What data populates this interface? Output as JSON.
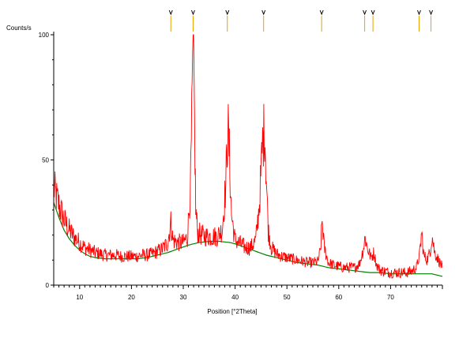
{
  "chart_data": {
    "type": "line",
    "ylabel": "Counts/s",
    "xlabel": "Position [°2Theta]",
    "xlim": [
      5,
      80
    ],
    "ylim": [
      0,
      100
    ],
    "x_ticks": [
      10,
      20,
      30,
      40,
      50,
      60,
      70
    ],
    "y_ticks": [
      0,
      50,
      100
    ],
    "grid": false,
    "series": [
      {
        "color": "#ff0000",
        "x": [
          5,
          6,
          7,
          8,
          9,
          10,
          11,
          12,
          13,
          14,
          15,
          16,
          17,
          18,
          19,
          20,
          21,
          22,
          23,
          24,
          25,
          26,
          27,
          27.6,
          28,
          29,
          30,
          30.8,
          31.4,
          31.7,
          31.9,
          32.1,
          32.4,
          32.8,
          33.5,
          34.5,
          35.5,
          36.5,
          37.5,
          38.2,
          38.6,
          38.9,
          39.3,
          40,
          41,
          42,
          43,
          44,
          44.7,
          45.3,
          45.7,
          46.0,
          46.4,
          47,
          48,
          49,
          50,
          51,
          52,
          53,
          54,
          55,
          56,
          56.5,
          56.8,
          57.2,
          58,
          59,
          60,
          61,
          62,
          63,
          64,
          64.7,
          65.1,
          65.5,
          66.2,
          66.8,
          67.3,
          68,
          69,
          70,
          71,
          72,
          73,
          74,
          75,
          75.6,
          76.0,
          76.4,
          77,
          77.6,
          78.0,
          78.5,
          79,
          80
        ],
        "y": [
          39,
          32,
          26,
          22,
          19,
          17,
          15,
          14,
          13,
          12.5,
          12,
          12,
          12,
          11.5,
          11.5,
          11.5,
          11.5,
          12,
          12,
          12.5,
          13.5,
          14.5,
          17,
          25,
          18,
          17,
          17,
          19,
          40,
          72,
          97,
          75,
          30,
          21,
          20,
          19.5,
          19.5,
          19.5,
          22,
          40,
          64,
          52,
          28,
          18,
          16.5,
          15,
          15,
          18,
          33,
          57,
          63,
          44,
          22,
          15,
          12.5,
          11.5,
          11,
          10.5,
          10,
          9.5,
          9,
          9,
          9.5,
          14,
          26,
          15,
          9,
          8,
          7.5,
          7,
          7,
          7,
          8.5,
          14,
          19,
          15,
          11,
          13,
          8,
          6,
          5.5,
          5,
          5,
          5,
          5,
          5.5,
          7,
          12,
          21,
          12,
          10,
          13,
          20,
          13,
          11,
          7
        ]
      },
      {
        "color": "#008000",
        "x": [
          5,
          6,
          7,
          8,
          9,
          10,
          11,
          12,
          13,
          15,
          17,
          19,
          21,
          23,
          25,
          27,
          29,
          31,
          33,
          35,
          37,
          39,
          40,
          42,
          44,
          46,
          48,
          50,
          52,
          54,
          56,
          58,
          60,
          62,
          64,
          66,
          68,
          70,
          72,
          74,
          76,
          78,
          79,
          80
        ],
        "y": [
          33,
          27,
          22,
          18.5,
          16,
          14,
          12.5,
          11.5,
          11,
          10.5,
          10.5,
          10.5,
          10.5,
          11,
          12,
          13,
          14.5,
          16,
          17,
          17.5,
          17.5,
          17,
          16.5,
          15,
          13.5,
          12,
          11,
          10,
          9,
          8.5,
          8,
          7,
          6.5,
          6,
          5.5,
          5,
          5,
          4.5,
          4.5,
          4.5,
          4.5,
          4.5,
          4,
          3.5
        ]
      }
    ],
    "reference_markers": {
      "color": "#e8a000",
      "positions": [
        27.6,
        31.9,
        38.5,
        45.5,
        56.7,
        65.0,
        66.6,
        75.5,
        77.8
      ]
    }
  }
}
